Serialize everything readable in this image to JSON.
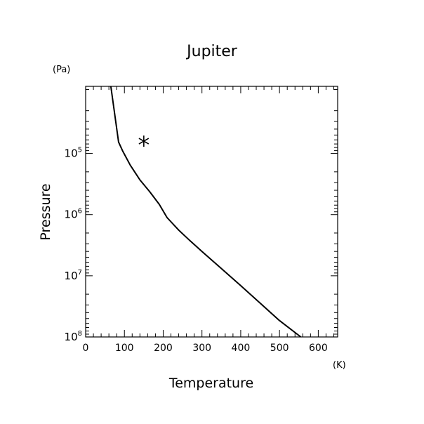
{
  "chart_data": {
    "type": "line",
    "title": "Jupiter",
    "xlabel": "Temperature",
    "ylabel": "Pressure",
    "xunit": "(K)",
    "yunit": "(Pa)",
    "xlim": [
      0,
      650
    ],
    "ylim": [
      8000,
      100000000
    ],
    "yscale": "log",
    "y_inverted": true,
    "grid": false,
    "x_ticks": [
      0,
      100,
      200,
      300,
      400,
      500,
      600
    ],
    "x_tick_labels": [
      "0",
      "100",
      "200",
      "300",
      "400",
      "500",
      "600"
    ],
    "y_ticks": [
      {
        "value": 100000,
        "base": "10",
        "exp": "5"
      },
      {
        "value": 1000000,
        "base": "10",
        "exp": "6"
      },
      {
        "value": 10000000,
        "base": "10",
        "exp": "7"
      },
      {
        "value": 100000000,
        "base": "10",
        "exp": "8"
      }
    ],
    "series": [
      {
        "color": "#000000",
        "x": [
          65,
          85,
          95,
          115,
          140,
          165,
          190,
          210,
          240,
          270,
          300,
          350,
          400,
          450,
          500,
          555
        ],
        "y": [
          8000,
          65000,
          90000,
          155000,
          270000,
          420000,
          680000,
          1120000,
          1790000,
          2700000,
          4000000,
          7600000,
          14500000,
          28000000,
          54000000,
          100000000
        ]
      }
    ],
    "marker": {
      "symbol": "asterisk",
      "x": 150,
      "y": 63000
    }
  }
}
